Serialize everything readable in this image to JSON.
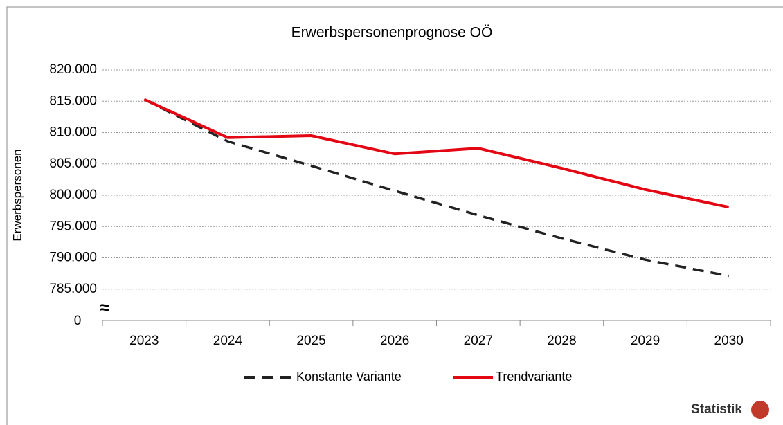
{
  "chart_data": {
    "type": "line",
    "title": "Erwerbspersonenprognose OÖ",
    "y_label": "Erwerbspersonen",
    "categories": [
      "2023",
      "2024",
      "2025",
      "2026",
      "2027",
      "2028",
      "2029",
      "2030"
    ],
    "series": [
      {
        "name": "Konstante Variante",
        "color": "#222222",
        "dash": true,
        "values": [
          815300,
          808600,
          804700,
          800700,
          796800,
          793100,
          789700,
          787100
        ]
      },
      {
        "name": "Trendvariante",
        "color": "#e30613",
        "dash": false,
        "values": [
          815300,
          809200,
          809500,
          806600,
          807500,
          804300,
          800900,
          798100
        ]
      }
    ],
    "ylim": [
      780000,
      820000
    ],
    "yticks": [
      {
        "value": 785000,
        "label": "785.000"
      },
      {
        "value": 790000,
        "label": "790.000"
      },
      {
        "value": 795000,
        "label": "795.000"
      },
      {
        "value": 800000,
        "label": "800.000"
      },
      {
        "value": 805000,
        "label": "805.000"
      },
      {
        "value": 810000,
        "label": "810.000"
      },
      {
        "value": 815000,
        "label": "815.000"
      },
      {
        "value": 820000,
        "label": "820.000"
      }
    ],
    "y_break_label": 0,
    "grid": true,
    "legend": "bottom",
    "logo_text": "Statistik"
  }
}
